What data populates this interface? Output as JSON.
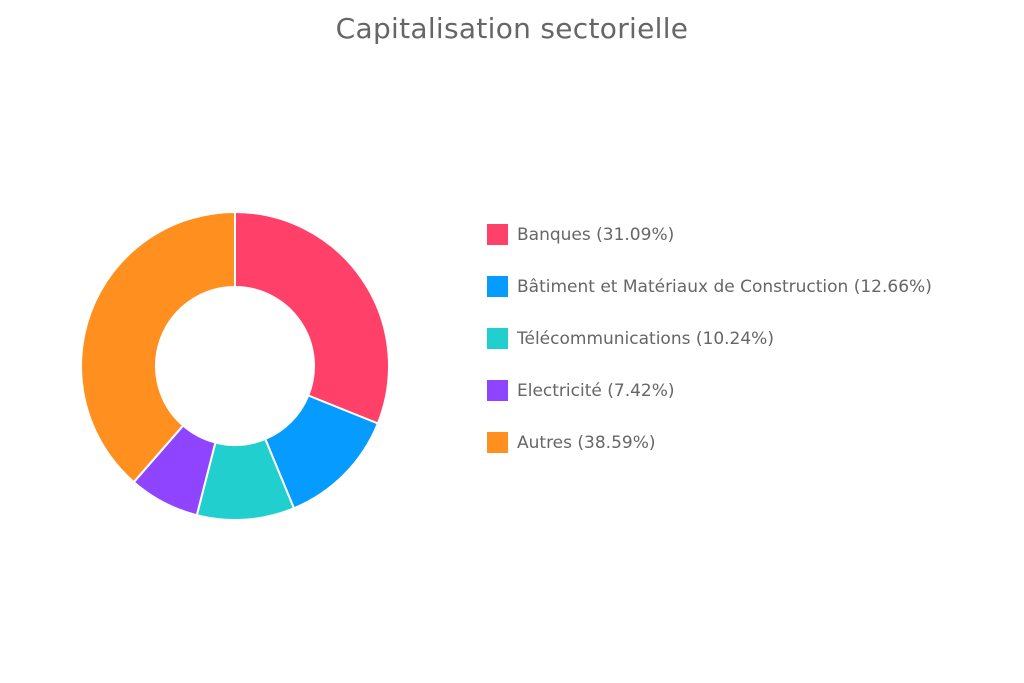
{
  "chart_data": {
    "type": "pie",
    "title": "Capitalisation sectorielle",
    "legend_position": "right",
    "donut": true,
    "slices": [
      {
        "label": "Banques (31.09%)",
        "value": 31.09,
        "color": "#ff4069"
      },
      {
        "label": "Bâtiment et Matériaux de Construction (12.66%)",
        "value": 12.66,
        "color": "#059bff"
      },
      {
        "label": "Télécommunications (10.24%)",
        "value": 10.24,
        "color": "#22cfcf"
      },
      {
        "label": "Electricité (7.42%)",
        "value": 7.42,
        "color": "#8f44ff"
      },
      {
        "label": "Autres (38.59%)",
        "value": 38.59,
        "color": "#ff9020"
      }
    ]
  }
}
